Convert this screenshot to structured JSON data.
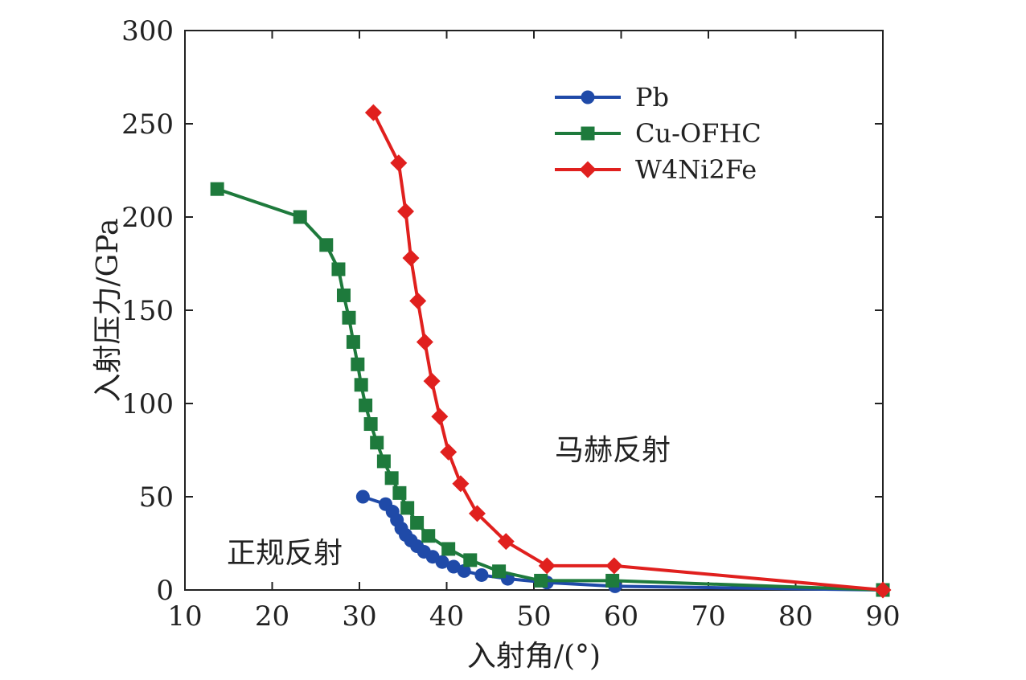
{
  "chart_data": {
    "type": "line",
    "title": "",
    "xlabel": "入射角/(°)",
    "ylabel": "入射压力/GPa",
    "xlim": [
      10,
      90
    ],
    "ylim": [
      0,
      300
    ],
    "xticks": [
      10,
      20,
      30,
      40,
      50,
      60,
      70,
      80,
      90
    ],
    "yticks": [
      0,
      50,
      100,
      150,
      200,
      250,
      300
    ],
    "legend_position": "top-right",
    "grid": false,
    "annotations": [
      "马赫反射",
      "正规反射"
    ],
    "series": [
      {
        "name": "Pb",
        "color": "#1f4aa8",
        "marker": "circle",
        "x": [
          30.4,
          33.0,
          33.8,
          34.3,
          34.8,
          35.3,
          35.9,
          36.6,
          37.4,
          38.4,
          39.5,
          40.8,
          42.0,
          44.0,
          47.0,
          51.5,
          59.3,
          90.0
        ],
        "y": [
          50.0,
          46.0,
          42.0,
          37.5,
          33.0,
          29.5,
          26.5,
          23.5,
          20.5,
          17.8,
          15.0,
          12.5,
          10.2,
          8.0,
          6.0,
          4.0,
          2.0,
          0.0
        ]
      },
      {
        "name": "Cu-OFHC",
        "color": "#1e7a3c",
        "marker": "square",
        "x": [
          13.7,
          23.2,
          26.2,
          27.6,
          28.2,
          28.8,
          29.3,
          29.8,
          30.2,
          30.7,
          31.3,
          32.0,
          32.8,
          33.7,
          34.6,
          35.5,
          36.6,
          37.9,
          40.2,
          42.7,
          46.0,
          50.8,
          59.0,
          90.0
        ],
        "y": [
          215.0,
          200.0,
          185.0,
          172.0,
          158.0,
          146.0,
          133.0,
          121.0,
          110.0,
          99.0,
          89.0,
          79.0,
          69.0,
          60.0,
          52.0,
          44.0,
          36.0,
          29.0,
          22.0,
          16.0,
          10.0,
          5.0,
          5.0,
          0.0
        ]
      },
      {
        "name": "W4Ni2Fe",
        "color": "#e0201e",
        "marker": "diamond",
        "x": [
          31.6,
          34.5,
          35.3,
          35.9,
          36.7,
          37.5,
          38.3,
          39.2,
          40.2,
          41.6,
          43.5,
          46.8,
          51.5,
          59.2,
          90.0
        ],
        "y": [
          256.0,
          229.0,
          203.0,
          178.0,
          155.0,
          133.0,
          112.0,
          93.0,
          74.0,
          57.0,
          41.0,
          26.0,
          13.0,
          13.0,
          0.0
        ]
      }
    ]
  }
}
